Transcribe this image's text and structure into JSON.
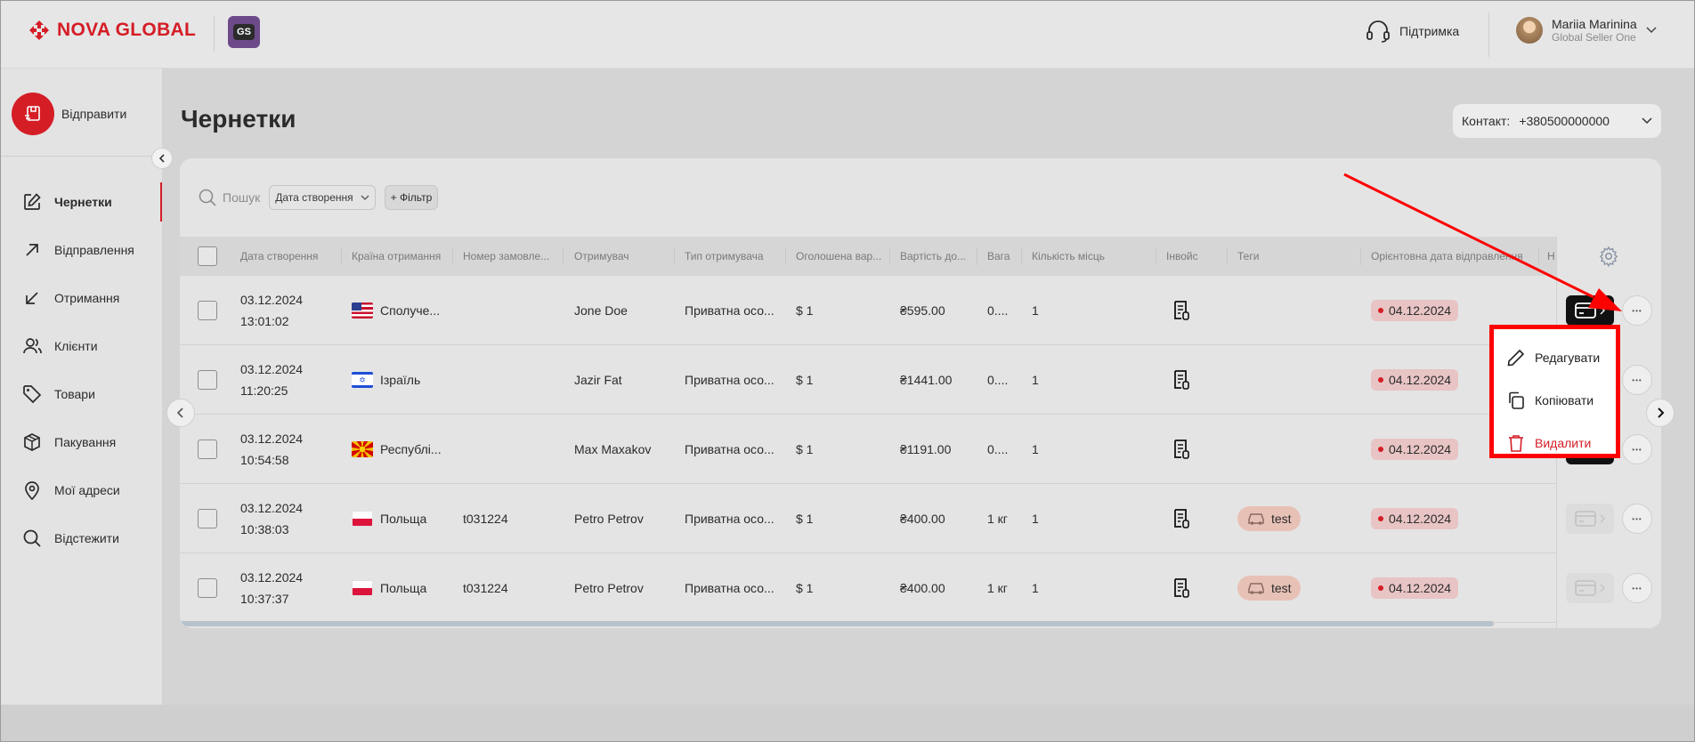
{
  "header": {
    "logo_text": "NOVA GLOBAL",
    "gs_badge": "GS",
    "support_label": "Підтримка",
    "user_name": "Mariia Marinina",
    "user_role": "Global Seller One",
    "brand_color": "#d51d26"
  },
  "sidebar": {
    "send_label": "Відправити",
    "items": [
      {
        "label": "Чернетки",
        "icon": "edit-icon",
        "active": true
      },
      {
        "label": "Відправлення",
        "icon": "arrow-up-right-icon",
        "active": false
      },
      {
        "label": "Отримання",
        "icon": "arrow-down-left-icon",
        "active": false
      },
      {
        "label": "Клієнти",
        "icon": "users-icon",
        "active": false
      },
      {
        "label": "Товари",
        "icon": "tag-icon",
        "active": false
      },
      {
        "label": "Пакування",
        "icon": "box-icon",
        "active": false
      },
      {
        "label": "Мої адреси",
        "icon": "map-pin-icon",
        "active": false
      },
      {
        "label": "Відстежити",
        "icon": "search-icon",
        "active": false
      }
    ]
  },
  "main": {
    "title": "Чернетки",
    "contact_label": "Контакт:",
    "contact_value": "+380500000000",
    "search_placeholder": "Пошук",
    "sort_label": "Дата створення",
    "filter_label": "+ Фільтр"
  },
  "table": {
    "columns": [
      "Дата створення",
      "Країна отримання",
      "Номер замовле...",
      "Отримувач",
      "Тип отримувача",
      "Оголошена вар...",
      "Вартість до...",
      "Вага",
      "Кількість місць",
      "Інвойс",
      "Теги",
      "Орієнтовна дата відправлення",
      "Н"
    ],
    "rows": [
      {
        "date": "03.12.2024",
        "time": "13:01:02",
        "flag": "us",
        "country": "Сполуче...",
        "order": "",
        "recipient": "Jone Doe",
        "type": "Приватна осо...",
        "declared": "$ 1",
        "cost": "₴595.00",
        "weight": "0....",
        "places": "1",
        "tag": "",
        "ship_date": "04.12.2024",
        "payment": "dark"
      },
      {
        "date": "03.12.2024",
        "time": "11:20:25",
        "flag": "il",
        "country": "Ізраїль",
        "order": "",
        "recipient": "Jazir Fat",
        "type": "Приватна осо...",
        "declared": "$ 1",
        "cost": "₴1441.00",
        "weight": "0....",
        "places": "1",
        "tag": "",
        "ship_date": "04.12.2024",
        "payment": "dark"
      },
      {
        "date": "03.12.2024",
        "time": "10:54:58",
        "flag": "mk",
        "country": "Республі...",
        "order": "",
        "recipient": "Max Maxakov",
        "type": "Приватна осо...",
        "declared": "$ 1",
        "cost": "₴1191.00",
        "weight": "0....",
        "places": "1",
        "tag": "",
        "ship_date": "04.12.2024",
        "payment": "dark"
      },
      {
        "date": "03.12.2024",
        "time": "10:38:03",
        "flag": "pl",
        "country": "Польща",
        "order": "t031224",
        "recipient": "Petro Petrov",
        "type": "Приватна осо...",
        "declared": "$ 1",
        "cost": "₴400.00",
        "weight": "1 кг",
        "places": "1",
        "tag": "test",
        "ship_date": "04.12.2024",
        "payment": "light"
      },
      {
        "date": "03.12.2024",
        "time": "10:37:37",
        "flag": "pl",
        "country": "Польща",
        "order": "t031224",
        "recipient": "Petro Petrov",
        "type": "Приватна осо...",
        "declared": "$ 1",
        "cost": "₴400.00",
        "weight": "1 кг",
        "places": "1",
        "tag": "test",
        "ship_date": "04.12.2024",
        "payment": "light"
      }
    ]
  },
  "context_menu": {
    "edit_label": "Редагувати",
    "copy_label": "Копіювати",
    "delete_label": "Видалити",
    "highlight_color": "#ff0000"
  }
}
